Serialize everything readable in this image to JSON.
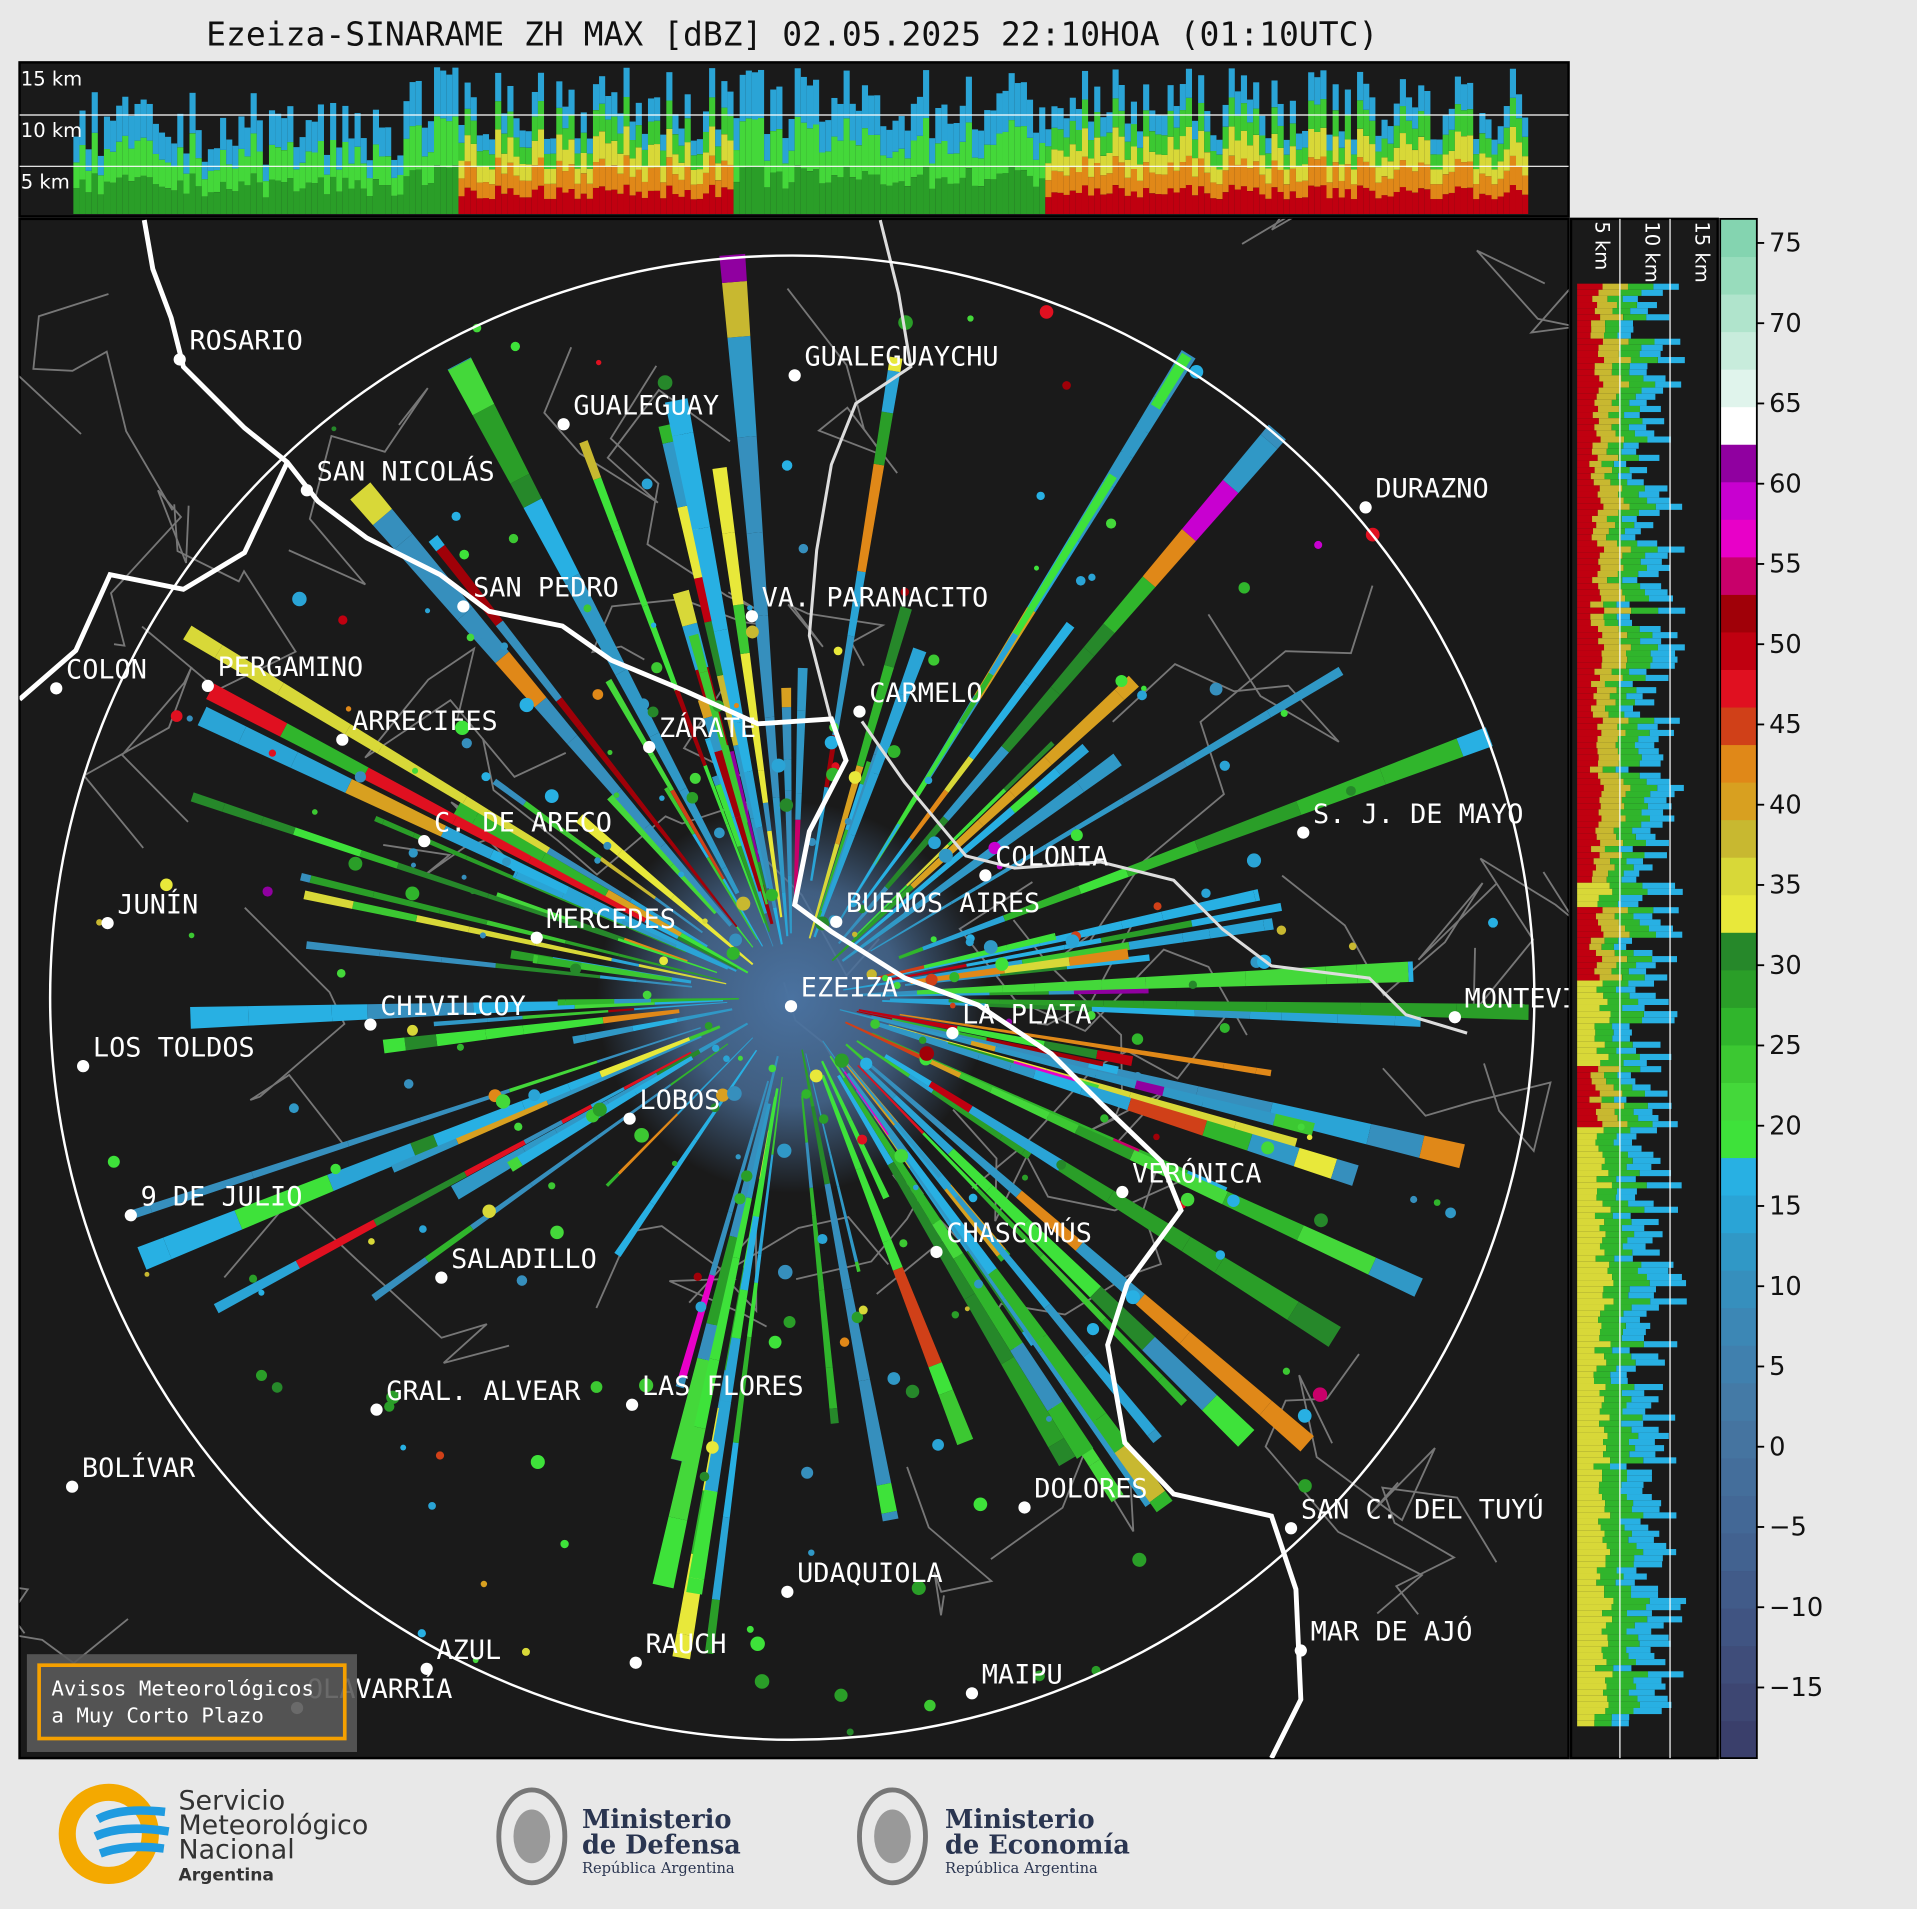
{
  "title": "Ezeiza-SINARAME ZH MAX [dBZ] 02.05.2025 22:10HOA (01:10UTC)",
  "cross_section_top": {
    "height_labels": [
      "15 km",
      "10 km",
      "5 km"
    ]
  },
  "cross_section_right": {
    "height_labels": [
      "5 km",
      "10 km",
      "15 km"
    ]
  },
  "cities": [
    "ROSARIO",
    "GUALEGUAYCHU",
    "GUALEGUAY",
    "SAN NICOLÁS",
    "DURAZNO",
    "SAN PEDRO",
    "VA. PARANACITO",
    "COLON",
    "PERGAMINO",
    "CARMELO",
    "ARRECIFES",
    "ZÁRATE",
    "C. DE ARECO",
    "S. J. DE MAYO",
    "COLONIA",
    "JUNÍN",
    "BUENOS AIRES",
    "MERCEDES",
    "EZEIZA",
    "LA PLATA",
    "MONTEVIDEO",
    "CHIVILCOY",
    "LOS TOLDOS",
    "LOBOS",
    "VERÓNICA",
    "9 DE JULIO",
    "CHASCOMÚS",
    "SALADILLO",
    "GRAL. ALVEAR",
    "LAS FLORES",
    "BOLÍVAR",
    "DOLORES",
    "SAN C. DEL TUYÚ",
    "UDAQUIOLA",
    "MAR DE AJÓ",
    "AZUL",
    "RAUCH",
    "OLAVARRÍA",
    "MAIPU"
  ],
  "colorbar": {
    "range": [
      -19.4,
      76.5
    ],
    "ticks": [
      {
        "value": -15,
        "label": "−15"
      },
      {
        "value": -10,
        "label": "−10"
      },
      {
        "value": -5,
        "label": "−5"
      },
      0,
      5,
      10,
      15,
      20,
      25,
      30,
      35,
      40,
      45,
      50,
      55,
      60,
      65,
      70,
      75
    ],
    "colors": [
      "#3a3f6b",
      "#3d4672",
      "#3f4d7a",
      "#405482",
      "#415b89",
      "#426290",
      "#436896",
      "#446e9b",
      "#4574a0",
      "#447aa6",
      "#4080ae",
      "#3c87b5",
      "#368fbd",
      "#3098c6",
      "#2aa4d6",
      "#28b0e3",
      "#3ee23a",
      "#44d83a",
      "#3cc832",
      "#30b52c",
      "#2a9e28",
      "#26882a",
      "#e8e83a",
      "#d8d838",
      "#c8b830",
      "#d8a020",
      "#e08818",
      "#d04018",
      "#e01020",
      "#c00010",
      "#a00008",
      "#c8006a",
      "#e800c8",
      "#c800d0",
      "#9000a0",
      "#ffffff",
      "#e0f4ec",
      "#c8ecdc",
      "#b0e4cc",
      "#98dcbc",
      "#84d4b0"
    ]
  },
  "badge": {
    "lines": [
      "Avisos Meteorológicos",
      "a Muy Corto Plazo"
    ]
  },
  "logos": [
    {
      "lines": [
        "Servicio",
        "Meteorológico",
        "Nacional"
      ],
      "subtitle": "Argentina"
    },
    {
      "lines": [
        "Ministerio",
        "de Defensa"
      ],
      "subtitle": "República Argentina"
    },
    {
      "lines": [
        "Ministerio",
        "de Economía"
      ],
      "subtitle": "República Argentina"
    }
  ]
}
